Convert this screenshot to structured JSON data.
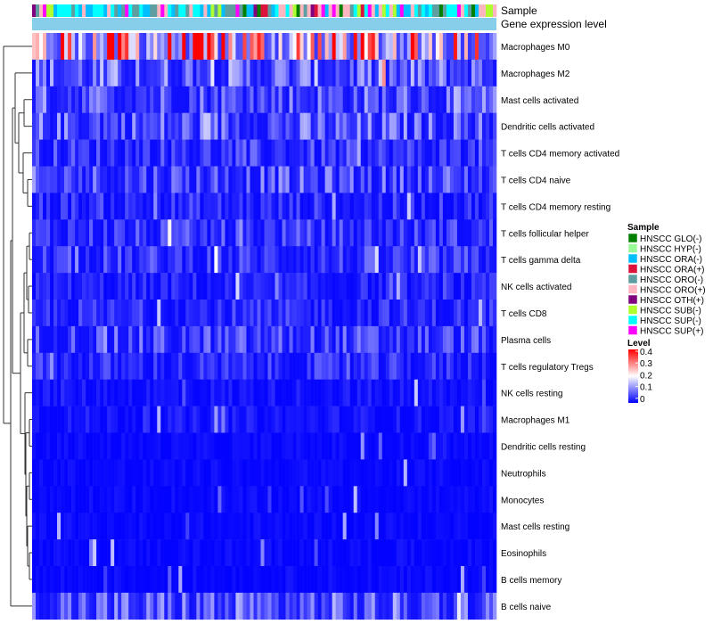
{
  "chart_data": {
    "type": "heatmap",
    "title": "",
    "annotation_tracks": [
      "Sample",
      "Gene expression level"
    ],
    "rows": [
      "Macrophages M0",
      "Macrophages M2",
      "Mast cells activated",
      "Dendritic cells activated",
      "T cells CD4 memory activated",
      "T cells CD4 naive",
      "T cells CD4 memory resting",
      "T cells follicular helper",
      "T cells gamma delta",
      "NK cells activated",
      "T cells CD8",
      "Plasma cells",
      "T cells regulatory  Tregs",
      "NK cells resting",
      "Macrophages M1",
      "Dendritic cells resting",
      "Neutrophils",
      "Monocytes",
      "Mast cells resting",
      "Eosinophils",
      "B cells memory",
      "B cells naive"
    ],
    "row_mean_level": [
      0.28,
      0.09,
      0.08,
      0.08,
      0.05,
      0.07,
      0.04,
      0.05,
      0.05,
      0.03,
      0.04,
      0.06,
      0.04,
      0.02,
      0.02,
      0.01,
      0.01,
      0.01,
      0.01,
      0.01,
      0.01,
      0.08
    ],
    "n_samples": 130,
    "color_scale": {
      "title": "Level",
      "ticks": [
        "0.4",
        "0.3",
        "0.2",
        "0.1",
        "0"
      ],
      "range": [
        0,
        0.4
      ],
      "low_color": "#0000ff",
      "mid_color": "#ffffff",
      "high_color": "#ff0000"
    },
    "legend_sample": {
      "title": "Sample",
      "entries": [
        {
          "label": "HNSCC GLO(-)",
          "color": "#008000"
        },
        {
          "label": "HNSCC HYP(-)",
          "color": "#98fb98"
        },
        {
          "label": "HNSCC ORA(-)",
          "color": "#00bfff"
        },
        {
          "label": "HNSCC ORA(+)",
          "color": "#dc143c"
        },
        {
          "label": "HNSCC ORO(-)",
          "color": "#5f9ea0"
        },
        {
          "label": "HNSCC ORO(+)",
          "color": "#ffb6c1"
        },
        {
          "label": "HNSCC OTH(+)",
          "color": "#800080"
        },
        {
          "label": "HNSCC SUB(-)",
          "color": "#adff2f"
        },
        {
          "label": "HNSCC SUP(-)",
          "color": "#00ffff"
        },
        {
          "label": "HNSCC SUP(+)",
          "color": "#ff00ff"
        }
      ]
    },
    "gene_expression_track_color": "#87ceeb"
  }
}
